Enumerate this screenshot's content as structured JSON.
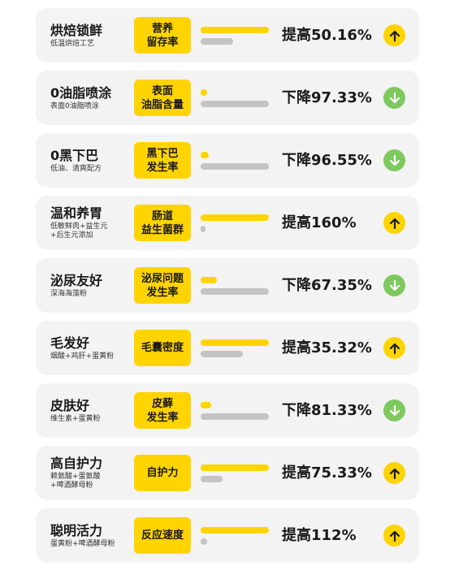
{
  "colors": {
    "accent": "#ffd400",
    "secondary_bar": "#c4c4c4",
    "card_bg": "#f3f3f3",
    "up": "#ffd400",
    "down": "#7dc95e"
  },
  "items": [
    {
      "title": "烘焙锁鲜",
      "subtitle": "低温烘焙工艺",
      "tag": "营养\n留存率",
      "stat": "提高50.16%",
      "direction": "up",
      "icon": "arrow-up-icon",
      "bar_primary": 1.0,
      "bar_secondary": 0.48
    },
    {
      "title": "0油脂喷涂",
      "subtitle": "表面0油脂喷涂",
      "tag": "表面\n油脂含量",
      "stat": "下降97.33%",
      "direction": "down",
      "icon": "arrow-down-icon",
      "bar_primary": 0.1,
      "bar_secondary": 1.0
    },
    {
      "title": "0黑下巴",
      "subtitle": "低油、清爽配方",
      "tag": "黑下巴\n发生率",
      "stat": "下降96.55%",
      "direction": "down",
      "icon": "arrow-down-icon",
      "bar_primary": 0.12,
      "bar_secondary": 1.0
    },
    {
      "title": "温和养胃",
      "subtitle": "低敏鲜肉+益生元\n+后生元添加",
      "tag": "肠道\n益生菌群",
      "stat": "提高160%",
      "direction": "up",
      "icon": "arrow-up-icon",
      "bar_primary": 1.0,
      "bar_secondary": 0.07
    },
    {
      "title": "泌尿友好",
      "subtitle": "深海海藻粉",
      "tag": "泌尿问题\n发生率",
      "stat": "下降67.35%",
      "direction": "down",
      "icon": "arrow-down-icon",
      "bar_primary": 0.24,
      "bar_secondary": 1.0
    },
    {
      "title": "毛发好",
      "subtitle": "烟酸+鸡肝+蛋黄粉",
      "tag": "毛囊密度",
      "stat": "提高35.32%",
      "direction": "up",
      "icon": "arrow-up-icon",
      "bar_primary": 1.0,
      "bar_secondary": 0.62
    },
    {
      "title": "皮肤好",
      "subtitle": "维生素+蛋黄粉",
      "tag": "皮藓\n发生率",
      "stat": "下降81.33%",
      "direction": "down",
      "icon": "arrow-down-icon",
      "bar_primary": 0.15,
      "bar_secondary": 1.0
    },
    {
      "title": "高自护力",
      "subtitle": "赖氨酸+蛋氨酸\n+啤酒酵母粉",
      "tag": "自护力",
      "stat": "提高75.33%",
      "direction": "up",
      "icon": "arrow-up-icon",
      "bar_primary": 1.0,
      "bar_secondary": 0.32
    },
    {
      "title": "聪明活力",
      "subtitle": "蛋黄粉+啤酒酵母粉",
      "tag": "反应速度",
      "stat": "提高112%",
      "direction": "up",
      "icon": "arrow-up-icon",
      "bar_primary": 1.0,
      "bar_secondary": 0.1
    }
  ]
}
